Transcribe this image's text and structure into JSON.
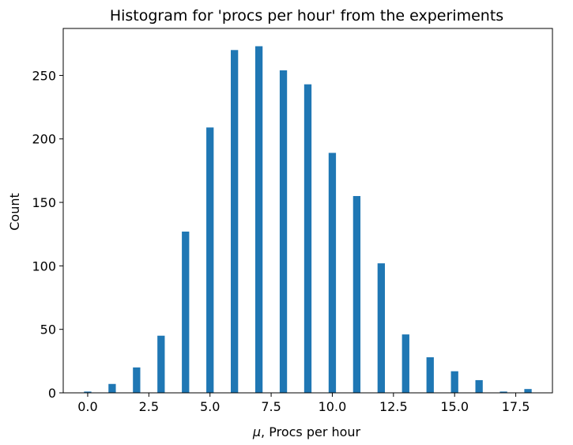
{
  "chart_data": {
    "type": "bar",
    "title": "Histogram for 'procs per hour' from the experiments",
    "xlabel_prefix": "μ",
    "xlabel_rest": ", Procs per hour",
    "ylabel": "Count",
    "x": [
      0,
      1,
      2,
      3,
      4,
      5,
      6,
      7,
      8,
      9,
      10,
      11,
      12,
      13,
      14,
      15,
      16,
      17,
      18
    ],
    "values": [
      1,
      7,
      20,
      45,
      127,
      209,
      270,
      273,
      254,
      243,
      189,
      155,
      102,
      46,
      28,
      17,
      10,
      1,
      3
    ],
    "xlim": [
      -1.0,
      19.0
    ],
    "ylim": [
      0,
      287
    ],
    "xticks": [
      0,
      2.5,
      5,
      7.5,
      10,
      12.5,
      15,
      17.5
    ],
    "xtick_labels": [
      "0.0",
      "2.5",
      "5.0",
      "7.5",
      "10.0",
      "12.5",
      "15.0",
      "17.5"
    ],
    "yticks": [
      0,
      50,
      100,
      150,
      200,
      250
    ],
    "ytick_labels": [
      "0",
      "50",
      "100",
      "150",
      "200",
      "250"
    ],
    "bar_color": "#1f77b4",
    "grid": false,
    "legend": "none"
  }
}
